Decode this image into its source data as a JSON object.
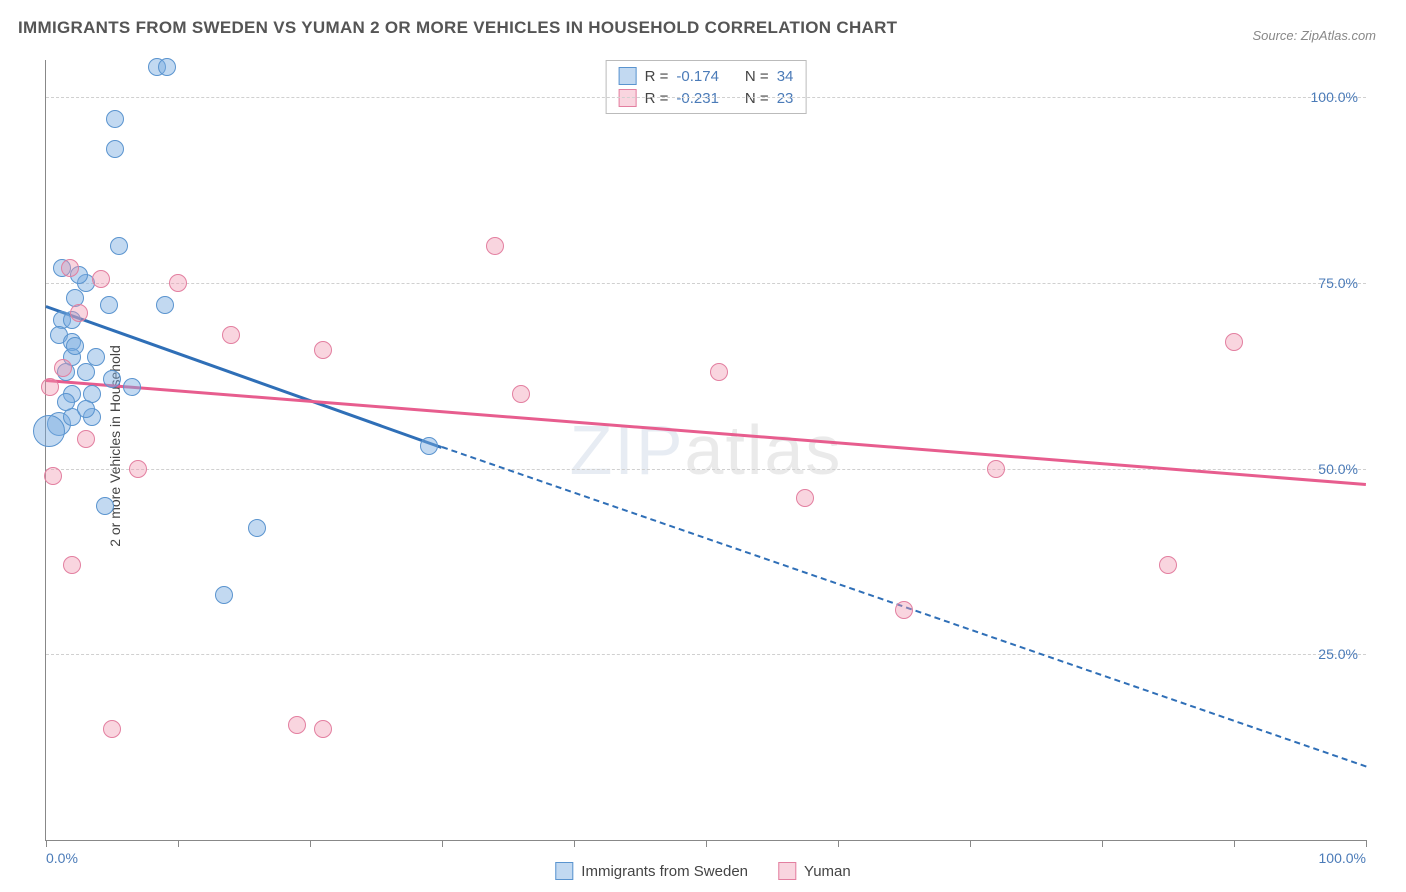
{
  "title": "IMMIGRANTS FROM SWEDEN VS YUMAN 2 OR MORE VEHICLES IN HOUSEHOLD CORRELATION CHART",
  "source": "Source: ZipAtlas.com",
  "ylabel": "2 or more Vehicles in Household",
  "watermark_a": "ZIP",
  "watermark_b": "atlas",
  "chart": {
    "type": "scatter",
    "xlim": [
      0,
      100
    ],
    "ylim": [
      0,
      105
    ],
    "xtick_positions": [
      0,
      10,
      20,
      30,
      40,
      50,
      60,
      70,
      80,
      90,
      100
    ],
    "ytick_labels": [
      {
        "v": 25,
        "label": "25.0%"
      },
      {
        "v": 50,
        "label": "50.0%"
      },
      {
        "v": 75,
        "label": "75.0%"
      },
      {
        "v": 100,
        "label": "100.0%"
      }
    ],
    "x_min_label": "0.0%",
    "x_max_label": "100.0%",
    "background_color": "#ffffff",
    "grid_color": "#d0d0d0",
    "axis_color": "#888888",
    "tick_color": "#4b7bb8",
    "label_color": "#444444"
  },
  "series": [
    {
      "name": "Immigrants from Sweden",
      "fill": "rgba(120,170,225,0.45)",
      "stroke": "#5a94cf",
      "trend_color": "#2f6fb7",
      "R": "-0.174",
      "N": "34",
      "trend": {
        "x1": 0,
        "y1": 72,
        "x2": 30,
        "y2": 53,
        "dashed_to_x": 100,
        "dashed_to_y": 10
      },
      "points": [
        {
          "x": 8.4,
          "y": 104,
          "r": 9
        },
        {
          "x": 9.2,
          "y": 104,
          "r": 9
        },
        {
          "x": 5.2,
          "y": 97,
          "r": 9
        },
        {
          "x": 5.2,
          "y": 93,
          "r": 9
        },
        {
          "x": 5.5,
          "y": 80,
          "r": 9
        },
        {
          "x": 2.2,
          "y": 73,
          "r": 9
        },
        {
          "x": 3.0,
          "y": 75,
          "r": 9
        },
        {
          "x": 4.8,
          "y": 72,
          "r": 9
        },
        {
          "x": 9.0,
          "y": 72,
          "r": 9
        },
        {
          "x": 1.2,
          "y": 70,
          "r": 9
        },
        {
          "x": 2.0,
          "y": 70,
          "r": 9
        },
        {
          "x": 1.0,
          "y": 68,
          "r": 9
        },
        {
          "x": 2.0,
          "y": 67,
          "r": 9
        },
        {
          "x": 2.0,
          "y": 65,
          "r": 9
        },
        {
          "x": 3.8,
          "y": 65,
          "r": 9
        },
        {
          "x": 1.5,
          "y": 63,
          "r": 9
        },
        {
          "x": 3.0,
          "y": 63,
          "r": 9
        },
        {
          "x": 2.0,
          "y": 60,
          "r": 9
        },
        {
          "x": 3.5,
          "y": 60,
          "r": 9
        },
        {
          "x": 5.0,
          "y": 62,
          "r": 9
        },
        {
          "x": 6.5,
          "y": 61,
          "r": 9
        },
        {
          "x": 1.0,
          "y": 56,
          "r": 12
        },
        {
          "x": 0.2,
          "y": 55,
          "r": 16
        },
        {
          "x": 2.0,
          "y": 57,
          "r": 9
        },
        {
          "x": 3.5,
          "y": 57,
          "r": 9
        },
        {
          "x": 4.5,
          "y": 45,
          "r": 9
        },
        {
          "x": 13.5,
          "y": 33,
          "r": 9
        },
        {
          "x": 16.0,
          "y": 42,
          "r": 9
        },
        {
          "x": 29.0,
          "y": 53,
          "r": 9
        },
        {
          "x": 2.5,
          "y": 76,
          "r": 9
        },
        {
          "x": 1.2,
          "y": 77,
          "r": 9
        },
        {
          "x": 2.2,
          "y": 66.5,
          "r": 9
        },
        {
          "x": 3.0,
          "y": 58,
          "r": 9
        },
        {
          "x": 1.5,
          "y": 59,
          "r": 9
        }
      ]
    },
    {
      "name": "Yuman",
      "fill": "rgba(240,150,175,0.40)",
      "stroke": "#e37fa0",
      "trend_color": "#e75d8e",
      "R": "-0.231",
      "N": "23",
      "trend": {
        "x1": 0,
        "y1": 62,
        "x2": 100,
        "y2": 48
      },
      "points": [
        {
          "x": 1.8,
          "y": 77,
          "r": 9
        },
        {
          "x": 4.2,
          "y": 75.5,
          "r": 9
        },
        {
          "x": 34.0,
          "y": 80,
          "r": 9
        },
        {
          "x": 10.0,
          "y": 75,
          "r": 9
        },
        {
          "x": 14.0,
          "y": 68,
          "r": 9
        },
        {
          "x": 21.0,
          "y": 66,
          "r": 9
        },
        {
          "x": 0.3,
          "y": 61,
          "r": 9
        },
        {
          "x": 36.0,
          "y": 60,
          "r": 9
        },
        {
          "x": 51.0,
          "y": 63,
          "r": 9
        },
        {
          "x": 90.0,
          "y": 67,
          "r": 9
        },
        {
          "x": 7.0,
          "y": 50,
          "r": 9
        },
        {
          "x": 0.5,
          "y": 49,
          "r": 9
        },
        {
          "x": 57.5,
          "y": 46,
          "r": 9
        },
        {
          "x": 72.0,
          "y": 50,
          "r": 9
        },
        {
          "x": 2.0,
          "y": 37,
          "r": 9
        },
        {
          "x": 85.0,
          "y": 37,
          "r": 9
        },
        {
          "x": 65.0,
          "y": 31,
          "r": 9
        },
        {
          "x": 21.0,
          "y": 15,
          "r": 9
        },
        {
          "x": 5.0,
          "y": 15,
          "r": 9
        },
        {
          "x": 19.0,
          "y": 15.5,
          "r": 9
        },
        {
          "x": 2.5,
          "y": 71,
          "r": 9
        },
        {
          "x": 3.0,
          "y": 54,
          "r": 9
        },
        {
          "x": 1.3,
          "y": 63.5,
          "r": 9
        }
      ]
    }
  ],
  "legend": {
    "r_label": "R =",
    "n_label": "N ="
  }
}
